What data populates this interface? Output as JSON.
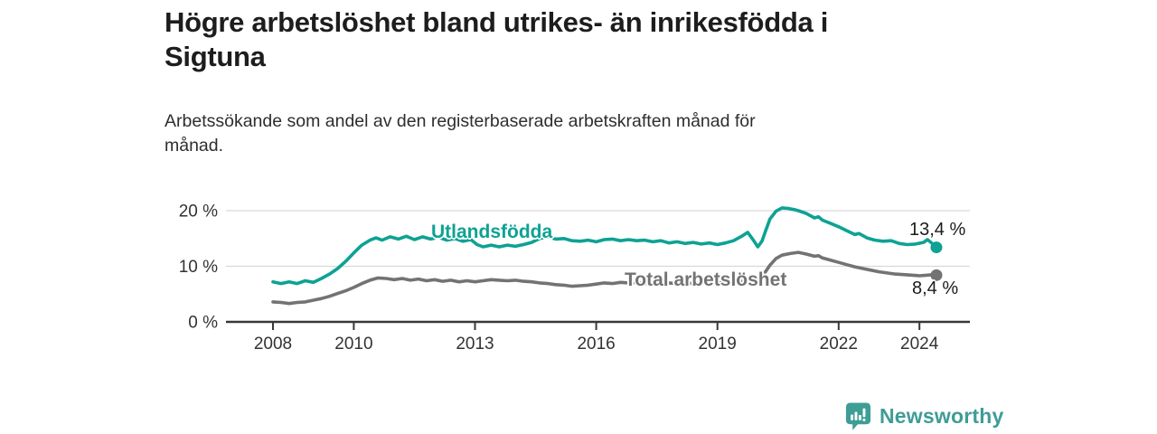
{
  "header": {
    "title_lines": [
      "Högre arbetslöshet bland utrikes- än inrikesfödda i",
      "Sigtuna"
    ],
    "subtitle_lines": [
      "Arbetssökande som andel av den registerbaserade arbetskraften månad för",
      "månad."
    ]
  },
  "chart_data": {
    "type": "line",
    "unit": "%",
    "grid": "horizontal-only",
    "legend_position": "inline-labels",
    "x_axis": {
      "ticks": [
        {
          "value": 2008,
          "label": "2008"
        },
        {
          "value": 2010,
          "label": "2010"
        },
        {
          "value": 2013,
          "label": "2013"
        },
        {
          "value": 2016,
          "label": "2016"
        },
        {
          "value": 2019,
          "label": "2019"
        },
        {
          "value": 2022,
          "label": "2022"
        },
        {
          "value": 2024,
          "label": "2024"
        }
      ],
      "range": [
        2006.8,
        2025.3
      ]
    },
    "y_axis": {
      "ticks": [
        {
          "value": 20,
          "label": "20 %"
        },
        {
          "value": 10,
          "label": "10 %"
        },
        {
          "value": 0,
          "label": "0 %"
        }
      ],
      "range": [
        0,
        22
      ]
    },
    "series": [
      {
        "name": "Utlandsfödda",
        "color": "#0DA294",
        "end_label": "13,4 %",
        "end_value": 13.4,
        "points": [
          [
            2008.0,
            7.2
          ],
          [
            2008.2,
            6.9
          ],
          [
            2008.4,
            7.2
          ],
          [
            2008.6,
            6.9
          ],
          [
            2008.8,
            7.4
          ],
          [
            2009.0,
            7.1
          ],
          [
            2009.2,
            7.8
          ],
          [
            2009.4,
            8.6
          ],
          [
            2009.6,
            9.6
          ],
          [
            2009.8,
            10.9
          ],
          [
            2010.0,
            12.4
          ],
          [
            2010.2,
            13.8
          ],
          [
            2010.4,
            14.7
          ],
          [
            2010.55,
            15.1
          ],
          [
            2010.7,
            14.7
          ],
          [
            2010.9,
            15.3
          ],
          [
            2011.1,
            14.9
          ],
          [
            2011.3,
            15.4
          ],
          [
            2011.5,
            14.8
          ],
          [
            2011.7,
            15.3
          ],
          [
            2011.9,
            14.9
          ],
          [
            2012.1,
            15.2
          ],
          [
            2012.3,
            14.7
          ],
          [
            2012.5,
            15.0
          ],
          [
            2012.7,
            14.5
          ],
          [
            2012.9,
            14.8
          ],
          [
            2013.05,
            13.9
          ],
          [
            2013.2,
            13.5
          ],
          [
            2013.4,
            13.8
          ],
          [
            2013.6,
            13.5
          ],
          [
            2013.8,
            13.8
          ],
          [
            2014.0,
            13.6
          ],
          [
            2014.2,
            13.9
          ],
          [
            2014.4,
            14.3
          ],
          [
            2014.6,
            15.0
          ],
          [
            2014.8,
            15.3
          ],
          [
            2015.0,
            14.9
          ],
          [
            2015.2,
            15.0
          ],
          [
            2015.4,
            14.6
          ],
          [
            2015.6,
            14.5
          ],
          [
            2015.8,
            14.7
          ],
          [
            2016.0,
            14.4
          ],
          [
            2016.2,
            14.8
          ],
          [
            2016.4,
            14.9
          ],
          [
            2016.6,
            14.6
          ],
          [
            2016.8,
            14.8
          ],
          [
            2017.0,
            14.6
          ],
          [
            2017.2,
            14.7
          ],
          [
            2017.4,
            14.4
          ],
          [
            2017.6,
            14.6
          ],
          [
            2017.8,
            14.2
          ],
          [
            2018.0,
            14.4
          ],
          [
            2018.2,
            14.1
          ],
          [
            2018.4,
            14.3
          ],
          [
            2018.6,
            14.0
          ],
          [
            2018.8,
            14.2
          ],
          [
            2019.0,
            13.9
          ],
          [
            2019.2,
            14.2
          ],
          [
            2019.4,
            14.6
          ],
          [
            2019.6,
            15.4
          ],
          [
            2019.75,
            16.1
          ],
          [
            2019.9,
            14.6
          ],
          [
            2020.0,
            13.5
          ],
          [
            2020.1,
            14.5
          ],
          [
            2020.2,
            16.5
          ],
          [
            2020.3,
            18.5
          ],
          [
            2020.45,
            19.9
          ],
          [
            2020.6,
            20.5
          ],
          [
            2020.75,
            20.4
          ],
          [
            2020.9,
            20.2
          ],
          [
            2021.0,
            20.0
          ],
          [
            2021.2,
            19.5
          ],
          [
            2021.4,
            18.7
          ],
          [
            2021.5,
            18.9
          ],
          [
            2021.6,
            18.3
          ],
          [
            2021.8,
            17.7
          ],
          [
            2022.0,
            17.1
          ],
          [
            2022.2,
            16.4
          ],
          [
            2022.4,
            15.7
          ],
          [
            2022.5,
            15.9
          ],
          [
            2022.7,
            15.1
          ],
          [
            2022.9,
            14.7
          ],
          [
            2023.1,
            14.5
          ],
          [
            2023.3,
            14.6
          ],
          [
            2023.5,
            14.1
          ],
          [
            2023.7,
            13.9
          ],
          [
            2023.9,
            14.0
          ],
          [
            2024.1,
            14.3
          ],
          [
            2024.2,
            14.8
          ],
          [
            2024.35,
            13.9
          ],
          [
            2024.42,
            13.4
          ]
        ]
      },
      {
        "name": "Total arbetslöshet",
        "color": "#737373",
        "end_label": "8,4 %",
        "end_value": 8.4,
        "points": [
          [
            2008.0,
            3.6
          ],
          [
            2008.2,
            3.5
          ],
          [
            2008.4,
            3.3
          ],
          [
            2008.6,
            3.5
          ],
          [
            2008.8,
            3.6
          ],
          [
            2009.0,
            3.9
          ],
          [
            2009.2,
            4.2
          ],
          [
            2009.4,
            4.6
          ],
          [
            2009.6,
            5.1
          ],
          [
            2009.8,
            5.6
          ],
          [
            2010.0,
            6.2
          ],
          [
            2010.2,
            6.9
          ],
          [
            2010.4,
            7.5
          ],
          [
            2010.6,
            7.9
          ],
          [
            2010.8,
            7.8
          ],
          [
            2011.0,
            7.6
          ],
          [
            2011.2,
            7.8
          ],
          [
            2011.4,
            7.5
          ],
          [
            2011.6,
            7.7
          ],
          [
            2011.8,
            7.4
          ],
          [
            2012.0,
            7.6
          ],
          [
            2012.2,
            7.3
          ],
          [
            2012.4,
            7.5
          ],
          [
            2012.6,
            7.2
          ],
          [
            2012.8,
            7.4
          ],
          [
            2013.0,
            7.2
          ],
          [
            2013.2,
            7.4
          ],
          [
            2013.4,
            7.6
          ],
          [
            2013.6,
            7.5
          ],
          [
            2013.8,
            7.4
          ],
          [
            2014.0,
            7.5
          ],
          [
            2014.2,
            7.3
          ],
          [
            2014.4,
            7.2
          ],
          [
            2014.6,
            7.0
          ],
          [
            2014.8,
            6.9
          ],
          [
            2015.0,
            6.7
          ],
          [
            2015.2,
            6.6
          ],
          [
            2015.4,
            6.4
          ],
          [
            2015.6,
            6.5
          ],
          [
            2015.8,
            6.6
          ],
          [
            2016.0,
            6.8
          ],
          [
            2016.2,
            7.0
          ],
          [
            2016.4,
            6.9
          ],
          [
            2016.6,
            7.1
          ],
          [
            2016.8,
            7.0
          ],
          [
            2017.0,
            7.1
          ],
          [
            2017.2,
            6.9
          ],
          [
            2017.4,
            7.0
          ],
          [
            2017.6,
            6.9
          ],
          [
            2017.8,
            7.0
          ],
          [
            2018.0,
            6.9
          ],
          [
            2018.2,
            7.0
          ],
          [
            2018.4,
            6.9
          ],
          [
            2018.6,
            7.0
          ],
          [
            2018.8,
            7.1
          ],
          [
            2019.0,
            7.0
          ],
          [
            2019.2,
            7.1
          ],
          [
            2019.4,
            7.2
          ],
          [
            2019.6,
            7.3
          ],
          [
            2019.8,
            7.4
          ],
          [
            2020.0,
            7.6
          ],
          [
            2020.15,
            8.6
          ],
          [
            2020.3,
            10.2
          ],
          [
            2020.45,
            11.4
          ],
          [
            2020.6,
            12.0
          ],
          [
            2020.8,
            12.3
          ],
          [
            2021.0,
            12.5
          ],
          [
            2021.2,
            12.2
          ],
          [
            2021.4,
            11.8
          ],
          [
            2021.5,
            11.9
          ],
          [
            2021.6,
            11.5
          ],
          [
            2021.8,
            11.1
          ],
          [
            2022.0,
            10.7
          ],
          [
            2022.2,
            10.3
          ],
          [
            2022.4,
            9.9
          ],
          [
            2022.6,
            9.6
          ],
          [
            2022.8,
            9.3
          ],
          [
            2023.0,
            9.0
          ],
          [
            2023.2,
            8.8
          ],
          [
            2023.4,
            8.6
          ],
          [
            2023.6,
            8.5
          ],
          [
            2023.8,
            8.4
          ],
          [
            2024.0,
            8.3
          ],
          [
            2024.2,
            8.4
          ],
          [
            2024.35,
            8.5
          ],
          [
            2024.42,
            8.4
          ]
        ]
      }
    ]
  },
  "footer": {
    "brand": "Newsworthy",
    "brand_color": "#3E9D95"
  },
  "colors": {
    "title": "#1d1d1d",
    "text": "#333333",
    "axis": "#383838",
    "grid": "#d9d9d9",
    "background": "#ffffff"
  }
}
